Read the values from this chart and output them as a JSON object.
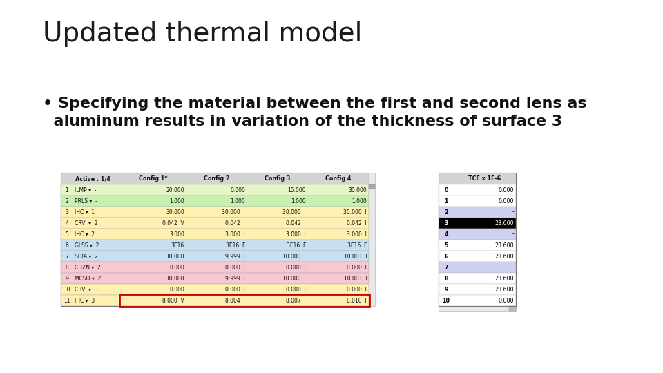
{
  "title": "Updated thermal model",
  "bullet_line1": "• Specifying the material between the first and second lens as",
  "bullet_line2": "  aluminum results in variation of the thickness of surface 3",
  "bg_color": "#ffffff",
  "title_fontsize": 28,
  "bullet_fontsize": 16,
  "table1": {
    "header": [
      "",
      "Active : 1/4",
      "Config 1*",
      "Config 2",
      "Config 3",
      "Config 4"
    ],
    "rows": [
      [
        "1",
        "ILMP ▾  -",
        "20.000",
        "0.000",
        "15.000",
        "30.000"
      ],
      [
        "2",
        "PRLS ▾  -",
        "1.000",
        "1.000",
        "1.000",
        "1.000"
      ],
      [
        "3",
        "IHC ▾  1",
        "30.000",
        "30.000  I",
        "30.000  I",
        "30.000  I"
      ],
      [
        "4",
        "CRVI ▾  2",
        "0.042  V",
        "0.042  I",
        "0.042  I",
        "0.042  I"
      ],
      [
        "5",
        "IHC ▾  2",
        "3.000",
        "3.000  I",
        "3.000  I",
        "3.000  I"
      ],
      [
        "6",
        "GLSS ▾  2",
        "3E16",
        "3E16  F",
        "3E16  F",
        "3E16  F"
      ],
      [
        "7",
        "SDIA ▾  2",
        "10.000",
        "9.999  I",
        "10.000  I",
        "10.001  I"
      ],
      [
        "8",
        "CHZN ▾  2",
        "0.000",
        "0.000  I",
        "0.000  I",
        "0.000  I"
      ],
      [
        "9",
        "MCSD ▾  2",
        "10.000",
        "9.999  I",
        "10.000  I",
        "10.001  I"
      ],
      [
        "10",
        "CRVI ▾  3",
        "0.000",
        "0.000  I",
        "0.000  I",
        "0.000  I"
      ],
      [
        "11",
        "IHC ▾  3",
        "8.000  V",
        "8.004  I",
        "8.007  I",
        "8.010  I"
      ]
    ],
    "row_colors": [
      "#e8f5c8",
      "#c8f0b0",
      "#fdf0b0",
      "#fdf0b0",
      "#fdf0b0",
      "#c8dff0",
      "#c8dff0",
      "#f8c8d0",
      "#f8c8d0",
      "#fdf0b0",
      "#fdf0b0"
    ],
    "highlight_row": 10,
    "highlight_color": "#cc0000"
  },
  "table2": {
    "header": [
      "",
      "TCE x 1E-6"
    ],
    "rows": [
      [
        "0",
        "0.000"
      ],
      [
        "1",
        "0.000"
      ],
      [
        "2",
        "-"
      ],
      [
        "3",
        "23.600"
      ],
      [
        "4",
        "-"
      ],
      [
        "5",
        "23.600"
      ],
      [
        "6",
        "23.600"
      ],
      [
        "7",
        "-"
      ],
      [
        "8",
        "23.600"
      ],
      [
        "9",
        "23.600"
      ],
      [
        "10",
        "0.000"
      ]
    ],
    "row_colors": [
      "#ffffff",
      "#ffffff",
      "#d0d0f0",
      "#000000",
      "#d0d0f0",
      "#ffffff",
      "#ffffff",
      "#d0d0f0",
      "#ffffff",
      "#ffffff",
      "#ffffff"
    ],
    "text_colors": [
      "#000000",
      "#000000",
      "#000000",
      "#ffffff",
      "#000000",
      "#000000",
      "#000000",
      "#000000",
      "#000000",
      "#000000",
      "#000000"
    ]
  }
}
